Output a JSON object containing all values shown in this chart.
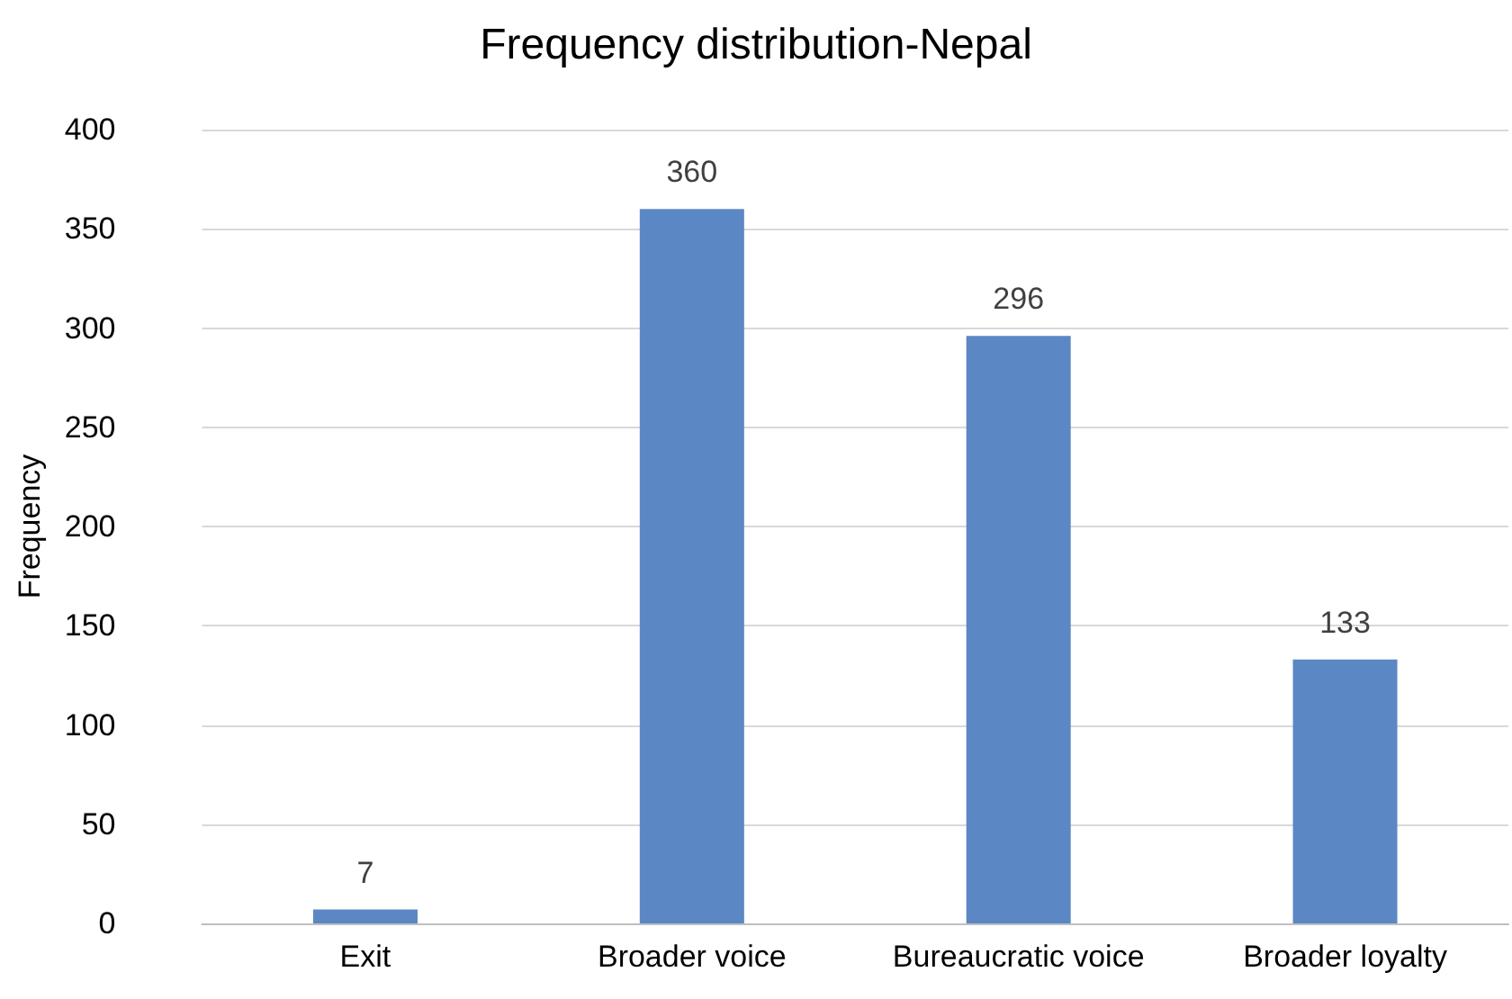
{
  "chart_data": {
    "type": "bar",
    "title": "Frequency distribution-Nepal",
    "ylabel": "Frequency",
    "categories": [
      "Exit",
      "Broader voice",
      "Bureaucratic voice",
      "Broader loyalty"
    ],
    "values": [
      7,
      360,
      296,
      133
    ],
    "color": "#5b87c5",
    "ylim": [
      0,
      400
    ],
    "yticks": [
      0,
      50,
      100,
      150,
      200,
      250,
      300,
      350,
      400
    ],
    "grid": "y",
    "data_labels": true
  }
}
